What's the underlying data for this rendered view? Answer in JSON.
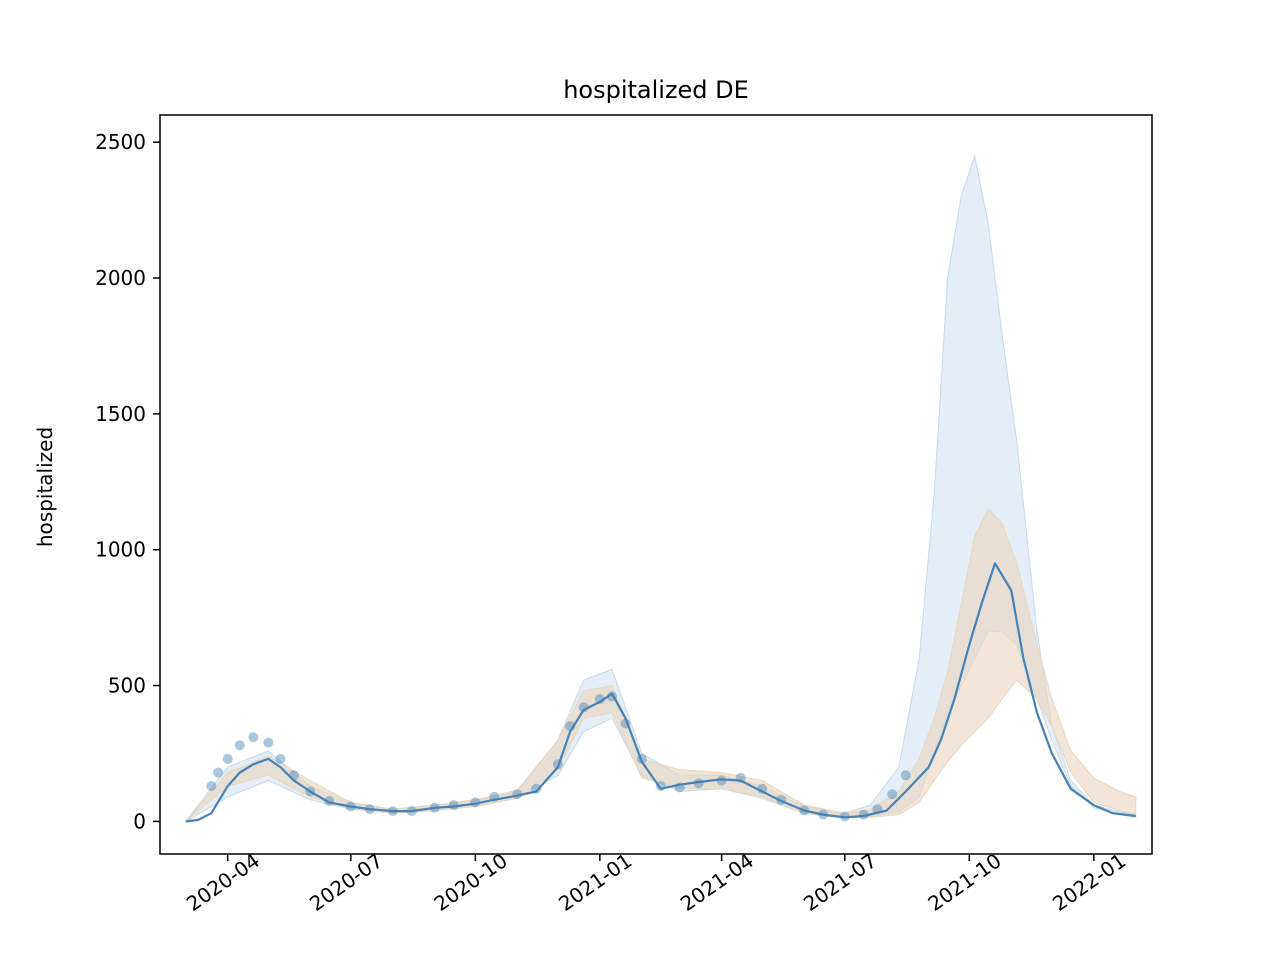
{
  "chart_data": {
    "type": "line",
    "title": "hospitalized DE",
    "xlabel": "",
    "ylabel": "hospitalized",
    "xlim": [
      "2020-02-11",
      "2022-02-13"
    ],
    "ylim": [
      -120,
      2600
    ],
    "grid": false,
    "x_ticks": [
      "2020-04",
      "2020-07",
      "2020-10",
      "2021-01",
      "2021-04",
      "2021-07",
      "2021-10",
      "2022-01"
    ],
    "y_ticks": [
      0,
      500,
      1000,
      1500,
      2000,
      2500
    ],
    "colors": {
      "line": "#4682b4",
      "band_wide": "#c6d9ea",
      "band_narrow": "#e8d6bf",
      "points": "#4682b4"
    },
    "series": [
      {
        "kind": "line",
        "x": [
          "2020-03-01",
          "2020-03-10",
          "2020-03-20",
          "2020-04-01",
          "2020-04-10",
          "2020-04-20",
          "2020-05-01",
          "2020-05-10",
          "2020-05-20",
          "2020-06-01",
          "2020-06-15",
          "2020-07-01",
          "2020-07-15",
          "2020-08-01",
          "2020-08-15",
          "2020-09-01",
          "2020-09-15",
          "2020-10-01",
          "2020-10-15",
          "2020-11-01",
          "2020-11-15",
          "2020-12-01",
          "2020-12-10",
          "2020-12-20",
          "2021-01-01",
          "2021-01-10",
          "2021-01-20",
          "2021-02-01",
          "2021-02-15",
          "2021-03-01",
          "2021-03-15",
          "2021-04-01",
          "2021-04-15",
          "2021-05-01",
          "2021-05-15",
          "2021-06-01",
          "2021-06-15",
          "2021-07-01",
          "2021-07-15",
          "2021-08-01",
          "2021-08-15",
          "2021-09-01",
          "2021-09-10",
          "2021-09-20",
          "2021-10-01",
          "2021-10-10",
          "2021-10-20",
          "2021-11-01",
          "2021-11-10",
          "2021-11-20",
          "2021-12-01",
          "2021-12-15",
          "2022-01-01",
          "2022-01-15",
          "2022-02-01"
        ],
        "y": [
          0,
          5,
          30,
          130,
          180,
          210,
          230,
          200,
          150,
          110,
          70,
          55,
          45,
          38,
          38,
          50,
          55,
          65,
          80,
          95,
          110,
          200,
          330,
          410,
          440,
          470,
          380,
          220,
          120,
          135,
          145,
          155,
          150,
          110,
          75,
          40,
          25,
          15,
          20,
          40,
          110,
          200,
          300,
          450,
          650,
          800,
          950,
          850,
          600,
          400,
          250,
          120,
          60,
          30,
          20
        ]
      },
      {
        "kind": "band",
        "name_hidden": "wide",
        "x": [
          "2020-03-01",
          "2020-04-01",
          "2020-05-01",
          "2020-06-01",
          "2020-07-01",
          "2020-08-01",
          "2020-09-01",
          "2020-10-01",
          "2020-11-01",
          "2020-12-01",
          "2020-12-20",
          "2021-01-10",
          "2021-02-01",
          "2021-03-01",
          "2021-04-01",
          "2021-05-01",
          "2021-06-01",
          "2021-07-01",
          "2021-07-20",
          "2021-08-10",
          "2021-08-25",
          "2021-09-05",
          "2021-09-15",
          "2021-09-25",
          "2021-10-05",
          "2021-10-15",
          "2021-10-25",
          "2021-11-05",
          "2021-11-20",
          "2021-12-01",
          "2021-12-15",
          "2022-01-01",
          "2022-01-20",
          "2022-02-01"
        ],
        "upper": [
          0,
          200,
          260,
          130,
          65,
          45,
          60,
          75,
          110,
          300,
          520,
          560,
          250,
          170,
          170,
          130,
          55,
          30,
          60,
          200,
          600,
          1200,
          2000,
          2300,
          2450,
          2200,
          1800,
          1400,
          700,
          350,
          150,
          60,
          35,
          25
        ],
        "lower": [
          0,
          90,
          150,
          80,
          45,
          30,
          40,
          55,
          85,
          170,
          330,
          380,
          170,
          110,
          120,
          85,
          30,
          12,
          18,
          35,
          90,
          250,
          400,
          500,
          600,
          700,
          700,
          650,
          450,
          300,
          130,
          50,
          25,
          15
        ]
      },
      {
        "kind": "band",
        "name_hidden": "narrow",
        "x": [
          "2020-03-01",
          "2020-04-01",
          "2020-05-01",
          "2020-06-01",
          "2020-07-01",
          "2020-08-01",
          "2020-09-01",
          "2020-10-01",
          "2020-11-01",
          "2020-12-01",
          "2020-12-20",
          "2021-01-10",
          "2021-02-01",
          "2021-03-01",
          "2021-04-01",
          "2021-05-01",
          "2021-06-01",
          "2021-07-01",
          "2021-07-20",
          "2021-08-10",
          "2021-08-25",
          "2021-09-05",
          "2021-09-15",
          "2021-09-25",
          "2021-10-05",
          "2021-10-15",
          "2021-10-25",
          "2021-11-05",
          "2021-11-20",
          "2021-12-01",
          "2021-12-15",
          "2022-01-01",
          "2022-01-20",
          "2022-02-01"
        ],
        "upper": [
          0,
          180,
          240,
          150,
          70,
          45,
          60,
          80,
          115,
          300,
          480,
          500,
          230,
          190,
          180,
          150,
          60,
          30,
          45,
          110,
          230,
          380,
          550,
          800,
          1050,
          1150,
          1100,
          950,
          650,
          450,
          260,
          160,
          110,
          90
        ],
        "lower": [
          0,
          130,
          170,
          90,
          45,
          30,
          40,
          55,
          85,
          190,
          380,
          400,
          160,
          120,
          120,
          90,
          30,
          12,
          15,
          25,
          70,
          150,
          220,
          280,
          330,
          380,
          450,
          520,
          450,
          350,
          180,
          70,
          40,
          25
        ]
      },
      {
        "kind": "points",
        "x": [
          "2020-03-20",
          "2020-03-25",
          "2020-04-01",
          "2020-04-10",
          "2020-04-20",
          "2020-05-01",
          "2020-05-10",
          "2020-05-20",
          "2020-06-01",
          "2020-06-15",
          "2020-07-01",
          "2020-07-15",
          "2020-08-01",
          "2020-08-15",
          "2020-09-01",
          "2020-09-15",
          "2020-10-01",
          "2020-10-15",
          "2020-11-01",
          "2020-11-15",
          "2020-12-01",
          "2020-12-10",
          "2020-12-20",
          "2021-01-01",
          "2021-01-10",
          "2021-01-20",
          "2021-02-01",
          "2021-02-15",
          "2021-03-01",
          "2021-03-15",
          "2021-04-01",
          "2021-04-15",
          "2021-05-01",
          "2021-05-15",
          "2021-06-01",
          "2021-06-15",
          "2021-07-01",
          "2021-07-15",
          "2021-07-25",
          "2021-08-05",
          "2021-08-15"
        ],
        "y": [
          130,
          180,
          230,
          280,
          310,
          290,
          230,
          170,
          110,
          75,
          55,
          45,
          38,
          38,
          50,
          60,
          70,
          90,
          100,
          120,
          210,
          350,
          420,
          450,
          460,
          360,
          230,
          130,
          125,
          140,
          150,
          160,
          120,
          80,
          40,
          25,
          18,
          25,
          45,
          100,
          170
        ]
      }
    ]
  }
}
